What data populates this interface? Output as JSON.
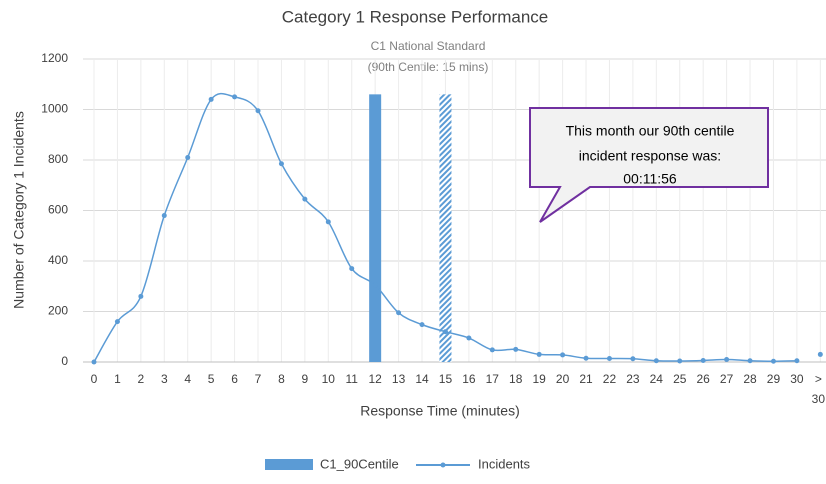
{
  "chart_data": {
    "type": "line",
    "title": "Category 1 Response Performance",
    "annotations": [
      "C1 National Standard",
      "(90th Centile: 15 mins)"
    ],
    "callout": [
      "This month our 90th centile",
      "incident response was:",
      "00:11:56"
    ],
    "x_label": "Response Time (minutes)",
    "y_label": "Number of Category 1 Incidents",
    "categories": [
      "0",
      "1",
      "2",
      "3",
      "4",
      "5",
      "6",
      "7",
      "8",
      "9",
      "10",
      "11",
      "12",
      "13",
      "14",
      "15",
      "16",
      "17",
      "18",
      "19",
      "20",
      "21",
      "22",
      "23",
      "24",
      "25",
      "26",
      "27",
      "28",
      "29",
      "30",
      "> 30"
    ],
    "ylim": [
      0,
      1200
    ],
    "yticks": [
      0,
      200,
      400,
      600,
      800,
      1000,
      1200
    ],
    "grid": true,
    "series": [
      {
        "name": "Incidents",
        "color": "#5b9bd5",
        "values": [
          0,
          160,
          260,
          580,
          810,
          1040,
          1050,
          995,
          785,
          645,
          555,
          370,
          305,
          195,
          148,
          120,
          95,
          48,
          50,
          30,
          28,
          15,
          14,
          13,
          5,
          4,
          6,
          10,
          5,
          3,
          5,
          30
        ]
      },
      {
        "name": "C1_90Centile",
        "color": "#5b9bd5",
        "type": "bar",
        "values": [
          null,
          null,
          null,
          null,
          null,
          null,
          null,
          null,
          null,
          null,
          null,
          null,
          1060,
          null,
          null,
          null,
          null,
          null,
          null,
          null,
          null,
          null,
          null,
          null,
          null,
          null,
          null,
          null,
          null,
          null,
          null,
          null
        ]
      },
      {
        "color": "#5b9bd5",
        "type": "bar",
        "pattern": "hatched",
        "values": [
          null,
          null,
          null,
          null,
          null,
          null,
          null,
          null,
          null,
          null,
          null,
          null,
          null,
          null,
          null,
          1060,
          null,
          null,
          null,
          null,
          null,
          null,
          null,
          null,
          null,
          null,
          null,
          null,
          null,
          null,
          null,
          null
        ]
      }
    ]
  }
}
